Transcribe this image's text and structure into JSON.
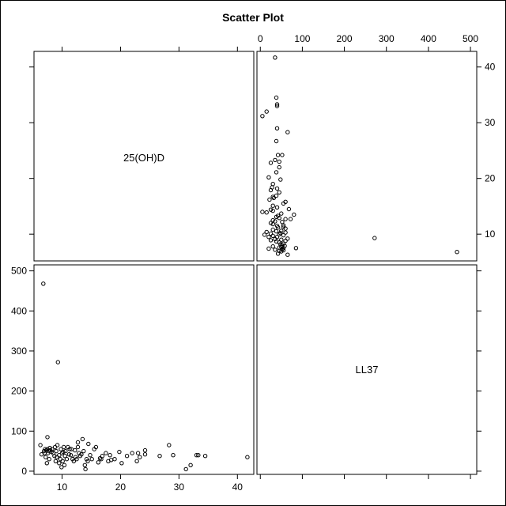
{
  "title": "Scatter Plot",
  "chart_data": {
    "type": "scatter",
    "title": "Scatter Plot",
    "layout": "scatter-matrix 2x2",
    "variables": [
      "25(OH)D",
      "LL37"
    ],
    "axes": {
      "25(OH)D": {
        "ticks": [
          10,
          20,
          30,
          40
        ],
        "range": [
          5.2,
          42.8
        ]
      },
      "LL37": {
        "ticks": [
          0,
          100,
          200,
          300,
          400,
          500
        ],
        "range": [
          -8,
          515
        ]
      }
    },
    "grid": false,
    "points": [
      {
        "x": 41.7,
        "y": 35
      },
      {
        "x": 34.5,
        "y": 38
      },
      {
        "x": 33.3,
        "y": 40
      },
      {
        "x": 33.0,
        "y": 40
      },
      {
        "x": 32.0,
        "y": 15
      },
      {
        "x": 31.2,
        "y": 5
      },
      {
        "x": 29.0,
        "y": 40
      },
      {
        "x": 28.3,
        "y": 65
      },
      {
        "x": 26.7,
        "y": 38
      },
      {
        "x": 24.2,
        "y": 42
      },
      {
        "x": 24.2,
        "y": 52
      },
      {
        "x": 23.3,
        "y": 35
      },
      {
        "x": 23.0,
        "y": 45
      },
      {
        "x": 22.8,
        "y": 25
      },
      {
        "x": 22.0,
        "y": 45
      },
      {
        "x": 21.1,
        "y": 38
      },
      {
        "x": 20.2,
        "y": 20
      },
      {
        "x": 19.8,
        "y": 48
      },
      {
        "x": 19.0,
        "y": 30
      },
      {
        "x": 18.4,
        "y": 28
      },
      {
        "x": 18.2,
        "y": 40
      },
      {
        "x": 17.9,
        "y": 25
      },
      {
        "x": 17.5,
        "y": 45
      },
      {
        "x": 16.9,
        "y": 38
      },
      {
        "x": 16.7,
        "y": 30
      },
      {
        "x": 16.5,
        "y": 32
      },
      {
        "x": 16.2,
        "y": 22
      },
      {
        "x": 15.8,
        "y": 60
      },
      {
        "x": 15.5,
        "y": 55
      },
      {
        "x": 15.1,
        "y": 30
      },
      {
        "x": 14.8,
        "y": 40
      },
      {
        "x": 14.5,
        "y": 68
      },
      {
        "x": 14.4,
        "y": 25
      },
      {
        "x": 14.2,
        "y": 30
      },
      {
        "x": 14.0,
        "y": 5
      },
      {
        "x": 13.9,
        "y": 15
      },
      {
        "x": 13.7,
        "y": 50
      },
      {
        "x": 13.5,
        "y": 80
      },
      {
        "x": 13.3,
        "y": 42
      },
      {
        "x": 12.9,
        "y": 45
      },
      {
        "x": 12.7,
        "y": 60
      },
      {
        "x": 12.7,
        "y": 72
      },
      {
        "x": 12.5,
        "y": 30
      },
      {
        "x": 12.3,
        "y": 35
      },
      {
        "x": 12.2,
        "y": 52
      },
      {
        "x": 12.0,
        "y": 25
      },
      {
        "x": 11.8,
        "y": 30
      },
      {
        "x": 11.5,
        "y": 40
      },
      {
        "x": 11.3,
        "y": 55
      },
      {
        "x": 11.2,
        "y": 42
      },
      {
        "x": 11.0,
        "y": 60
      },
      {
        "x": 10.8,
        "y": 30
      },
      {
        "x": 10.6,
        "y": 50
      },
      {
        "x": 10.5,
        "y": 38
      },
      {
        "x": 10.4,
        "y": 15
      },
      {
        "x": 10.3,
        "y": 60
      },
      {
        "x": 10.1,
        "y": 25
      },
      {
        "x": 10.0,
        "y": 45
      },
      {
        "x": 9.9,
        "y": 10
      },
      {
        "x": 9.8,
        "y": 55
      },
      {
        "x": 9.7,
        "y": 30
      },
      {
        "x": 9.5,
        "y": 20
      },
      {
        "x": 9.5,
        "y": 40
      },
      {
        "x": 9.3,
        "y": 272
      },
      {
        "x": 9.2,
        "y": 65
      },
      {
        "x": 9.1,
        "y": 35
      },
      {
        "x": 9.0,
        "y": 50
      },
      {
        "x": 8.9,
        "y": 25
      },
      {
        "x": 8.8,
        "y": 60
      },
      {
        "x": 8.7,
        "y": 38
      },
      {
        "x": 8.5,
        "y": 45
      },
      {
        "x": 8.3,
        "y": 55
      },
      {
        "x": 8.2,
        "y": 48
      },
      {
        "x": 8.0,
        "y": 52
      },
      {
        "x": 7.9,
        "y": 58
      },
      {
        "x": 7.8,
        "y": 30
      },
      {
        "x": 7.7,
        "y": 50
      },
      {
        "x": 7.6,
        "y": 45
      },
      {
        "x": 7.5,
        "y": 55
      },
      {
        "x": 7.5,
        "y": 85
      },
      {
        "x": 7.4,
        "y": 20
      },
      {
        "x": 7.3,
        "y": 52
      },
      {
        "x": 7.2,
        "y": 35
      },
      {
        "x": 7.1,
        "y": 55
      },
      {
        "x": 7.0,
        "y": 45
      },
      {
        "x": 6.9,
        "y": 50
      },
      {
        "x": 6.8,
        "y": 468
      },
      {
        "x": 6.5,
        "y": 42
      },
      {
        "x": 6.3,
        "y": 65
      },
      {
        "x": 11.6,
        "y": 55
      },
      {
        "x": 13.1,
        "y": 38
      },
      {
        "x": 10.2,
        "y": 48
      }
    ]
  }
}
